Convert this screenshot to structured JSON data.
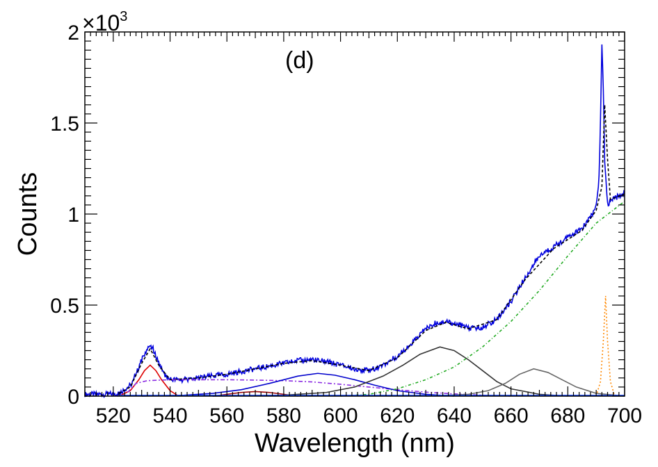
{
  "chart_data": {
    "type": "line",
    "title": "",
    "annotation": "(d)",
    "xlabel": "Wavelength (nm)",
    "ylabel": "Counts",
    "y_exponent_base": "×10",
    "y_exponent_power": "3",
    "xlim": [
      510,
      700
    ],
    "ylim": [
      0,
      2.0
    ],
    "x_ticks": [
      520,
      540,
      560,
      580,
      600,
      620,
      640,
      660,
      680,
      700
    ],
    "x_tick_labels": [
      "520",
      "540",
      "560",
      "580",
      "600",
      "620",
      "640",
      "660",
      "680",
      "700"
    ],
    "y_ticks": [
      0,
      0.5,
      1,
      1.5,
      2
    ],
    "y_tick_labels": [
      "0",
      "0.5",
      "1",
      "1.5",
      "2"
    ],
    "grid": false,
    "legend": "none",
    "series": [
      {
        "style": "measured",
        "color": "#0000dd",
        "dash": "",
        "points": [
          [
            510,
            0.01
          ],
          [
            518,
            0.01
          ],
          [
            522,
            0.015
          ],
          [
            526,
            0.06
          ],
          [
            528,
            0.12
          ],
          [
            530,
            0.2
          ],
          [
            532,
            0.26
          ],
          [
            533,
            0.28
          ],
          [
            534,
            0.26
          ],
          [
            536,
            0.18
          ],
          [
            538,
            0.11
          ],
          [
            540,
            0.09
          ],
          [
            545,
            0.09
          ],
          [
            550,
            0.1
          ],
          [
            560,
            0.12
          ],
          [
            570,
            0.15
          ],
          [
            580,
            0.18
          ],
          [
            585,
            0.195
          ],
          [
            590,
            0.2
          ],
          [
            595,
            0.19
          ],
          [
            600,
            0.17
          ],
          [
            605,
            0.15
          ],
          [
            610,
            0.14
          ],
          [
            615,
            0.17
          ],
          [
            620,
            0.22
          ],
          [
            625,
            0.29
          ],
          [
            630,
            0.37
          ],
          [
            633,
            0.4
          ],
          [
            637,
            0.41
          ],
          [
            642,
            0.39
          ],
          [
            646,
            0.37
          ],
          [
            650,
            0.38
          ],
          [
            655,
            0.42
          ],
          [
            660,
            0.52
          ],
          [
            665,
            0.65
          ],
          [
            670,
            0.77
          ],
          [
            675,
            0.82
          ],
          [
            680,
            0.87
          ],
          [
            685,
            0.92
          ],
          [
            688,
            0.98
          ],
          [
            690,
            1.05
          ],
          [
            691,
            1.2
          ],
          [
            691.5,
            1.5
          ],
          [
            692,
            1.94
          ],
          [
            692.5,
            1.7
          ],
          [
            693,
            1.3
          ],
          [
            694,
            1.05
          ],
          [
            696,
            1.08
          ],
          [
            698,
            1.1
          ],
          [
            700,
            1.12
          ]
        ]
      },
      {
        "style": "total-fit",
        "color": "#000000",
        "dash": "4,3",
        "points": [
          [
            522,
            0.015
          ],
          [
            526,
            0.05
          ],
          [
            530,
            0.18
          ],
          [
            533,
            0.26
          ],
          [
            536,
            0.17
          ],
          [
            540,
            0.09
          ],
          [
            550,
            0.1
          ],
          [
            560,
            0.12
          ],
          [
            570,
            0.15
          ],
          [
            580,
            0.18
          ],
          [
            590,
            0.195
          ],
          [
            600,
            0.17
          ],
          [
            610,
            0.14
          ],
          [
            620,
            0.21
          ],
          [
            630,
            0.36
          ],
          [
            637,
            0.405
          ],
          [
            645,
            0.37
          ],
          [
            655,
            0.42
          ],
          [
            665,
            0.64
          ],
          [
            675,
            0.81
          ],
          [
            685,
            0.91
          ],
          [
            690,
            1.02
          ],
          [
            692,
            1.15
          ],
          [
            693,
            1.6
          ],
          [
            694,
            1.3
          ],
          [
            695,
            1.08
          ],
          [
            700,
            1.11
          ]
        ]
      },
      {
        "style": "component",
        "color": "#dd0000",
        "dash": "",
        "points": [
          [
            522,
            0.0
          ],
          [
            526,
            0.03
          ],
          [
            529,
            0.09
          ],
          [
            531,
            0.14
          ],
          [
            533,
            0.17
          ],
          [
            535,
            0.14
          ],
          [
            537,
            0.09
          ],
          [
            540,
            0.03
          ],
          [
            543,
            0.0
          ]
        ]
      },
      {
        "style": "component",
        "color": "#990000",
        "dash": "",
        "points": [
          [
            555,
            0.0
          ],
          [
            560,
            0.01
          ],
          [
            565,
            0.02
          ],
          [
            570,
            0.025
          ],
          [
            575,
            0.02
          ],
          [
            580,
            0.01
          ],
          [
            585,
            0.0
          ]
        ]
      },
      {
        "style": "component",
        "color": "#8a2be2",
        "dash": "6,3,2,3",
        "points": [
          [
            525,
            0.02
          ],
          [
            528,
            0.07
          ],
          [
            532,
            0.085
          ],
          [
            540,
            0.09
          ],
          [
            550,
            0.09
          ],
          [
            560,
            0.09
          ],
          [
            570,
            0.088
          ],
          [
            580,
            0.085
          ],
          [
            590,
            0.078
          ],
          [
            600,
            0.065
          ],
          [
            610,
            0.05
          ],
          [
            620,
            0.035
          ],
          [
            630,
            0.022
          ],
          [
            640,
            0.012
          ],
          [
            650,
            0.005
          ],
          [
            660,
            0.0
          ]
        ]
      },
      {
        "style": "component",
        "color": "#0000cc",
        "dash": "",
        "points": [
          [
            530,
            0.0
          ],
          [
            545,
            0.005
          ],
          [
            555,
            0.015
          ],
          [
            565,
            0.035
          ],
          [
            575,
            0.07
          ],
          [
            585,
            0.11
          ],
          [
            592,
            0.125
          ],
          [
            598,
            0.115
          ],
          [
            605,
            0.09
          ],
          [
            612,
            0.06
          ],
          [
            620,
            0.03
          ],
          [
            630,
            0.01
          ],
          [
            640,
            0.0
          ]
        ]
      },
      {
        "style": "component",
        "color": "#333333",
        "dash": "",
        "points": [
          [
            555,
            0.0
          ],
          [
            580,
            0.005
          ],
          [
            595,
            0.02
          ],
          [
            605,
            0.05
          ],
          [
            615,
            0.11
          ],
          [
            622,
            0.17
          ],
          [
            628,
            0.23
          ],
          [
            635,
            0.27
          ],
          [
            640,
            0.25
          ],
          [
            645,
            0.2
          ],
          [
            650,
            0.14
          ],
          [
            655,
            0.08
          ],
          [
            660,
            0.04
          ],
          [
            670,
            0.01
          ],
          [
            680,
            0.0
          ]
        ]
      },
      {
        "style": "component",
        "color": "#666666",
        "dash": "",
        "points": [
          [
            630,
            0.0
          ],
          [
            645,
            0.01
          ],
          [
            652,
            0.03
          ],
          [
            658,
            0.07
          ],
          [
            663,
            0.12
          ],
          [
            668,
            0.15
          ],
          [
            673,
            0.13
          ],
          [
            678,
            0.09
          ],
          [
            683,
            0.05
          ],
          [
            690,
            0.015
          ],
          [
            700,
            0.0
          ]
        ]
      },
      {
        "style": "component",
        "color": "#22aa22",
        "dash": "4,3,1,3",
        "points": [
          [
            600,
            0.0
          ],
          [
            610,
            0.01
          ],
          [
            620,
            0.04
          ],
          [
            630,
            0.09
          ],
          [
            640,
            0.16
          ],
          [
            650,
            0.27
          ],
          [
            660,
            0.41
          ],
          [
            670,
            0.58
          ],
          [
            680,
            0.77
          ],
          [
            690,
            0.95
          ],
          [
            700,
            1.07
          ]
        ]
      },
      {
        "style": "component",
        "color": "#ff8800",
        "dash": "2,3",
        "points": [
          [
            690,
            0.0
          ],
          [
            691.5,
            0.08
          ],
          [
            692.5,
            0.3
          ],
          [
            693.3,
            0.55
          ],
          [
            694,
            0.3
          ],
          [
            695,
            0.08
          ],
          [
            696.5,
            0.0
          ]
        ]
      },
      {
        "style": "baseline",
        "color": "#1144ff",
        "dash": "",
        "points": [
          [
            522,
            0.004
          ],
          [
            700,
            0.004
          ]
        ]
      }
    ]
  }
}
